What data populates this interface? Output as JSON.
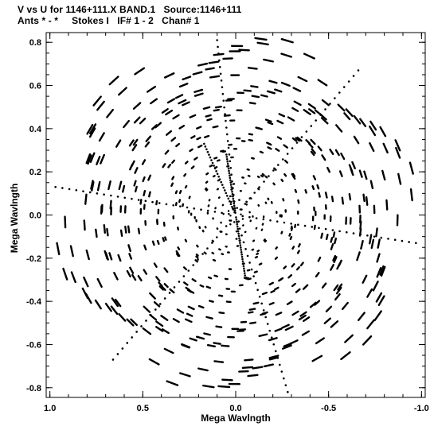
{
  "header": {
    "line1": "V vs U for 1146+111.X BAND.1   Source:1146+111",
    "line2": "Ants * - *     Stokes I   IF# 1 - 2   Chan# 1"
  },
  "chart_data": {
    "type": "scatter",
    "title": "V vs U for 1146+111.X BAND.1   Source:1146+111",
    "subtitle": "Ants * - *     Stokes I   IF# 1 - 2   Chan# 1",
    "xlabel": "Mega Wavlngth",
    "ylabel": "Mega Wavlngth",
    "xlim": [
      1.02,
      -1.02
    ],
    "ylim": [
      -0.845,
      0.845
    ],
    "x_ticks": [
      1.0,
      0.5,
      0.0,
      -0.5,
      -1.0
    ],
    "x_tick_labels": [
      "1.0",
      "0.5",
      "0.0",
      "-0.5",
      "-1.0"
    ],
    "y_ticks": [
      0.8,
      0.6,
      0.4,
      0.2,
      0.0,
      -0.2,
      -0.4,
      -0.6,
      -0.8
    ],
    "y_tick_labels": [
      "0.8",
      "0.6",
      "0.4",
      "0.2",
      "0.0",
      "-0.2",
      "-0.4",
      "-0.6",
      "-0.8"
    ],
    "grid": false,
    "color": "#000000",
    "uv_coverage": {
      "description_note": "",
      "arm_end_points_u_v": [
        [
          0.1,
          0.81
        ],
        [
          0.17,
          0.33
        ],
        [
          0.97,
          0.13
        ],
        [
          0.66,
          -0.67
        ],
        [
          -0.05,
          -0.28
        ],
        [
          -0.28,
          -0.82
        ],
        [
          -0.97,
          -0.13
        ],
        [
          -0.66,
          0.67
        ],
        [
          0.05,
          0.28
        ]
      ],
      "max_radius": 0.98
    }
  }
}
